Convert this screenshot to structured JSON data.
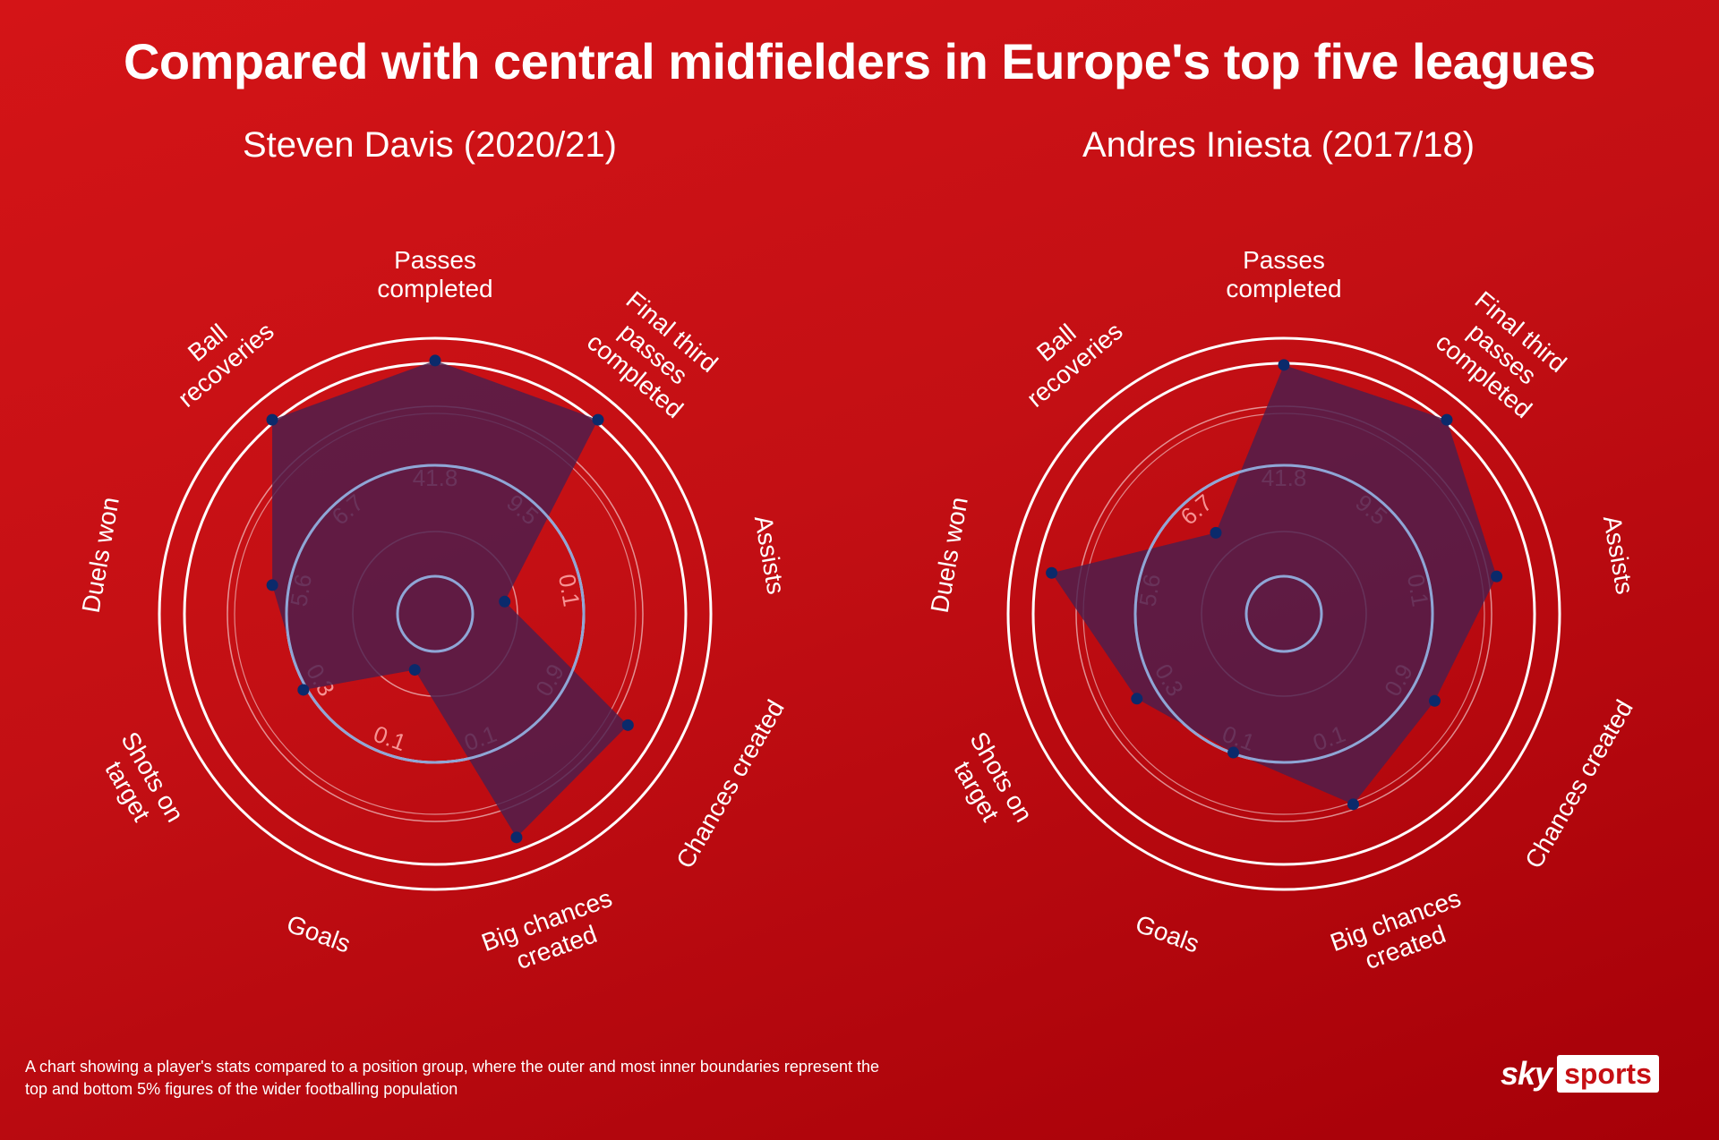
{
  "title": "Compared with central midfielders in Europe's top five leagues",
  "footnote": "A chart showing a player's stats compared to a position group, where the outer and most inner boundaries represent the top and bottom 5% figures of the wider footballing population",
  "logo": {
    "sky": "sky",
    "sports": "sports"
  },
  "colors": {
    "background": "#c8101a",
    "fill": "#4b1f4e",
    "point": "#0b2a6b",
    "ring": "#ffffff",
    "median_ring": "#8fa6d6"
  },
  "chart_data": [
    {
      "type": "radar",
      "title": "Steven Davis (2020/21)",
      "axes": [
        "Passes completed",
        "Final third passes completed",
        "Assists",
        "Chances created",
        "Big chances created",
        "Goals",
        "Shots on target",
        "Duels won",
        "Ball recoveries"
      ],
      "median_labels": [
        "41.8",
        "9.5",
        "0.1",
        "0.9",
        "0.1",
        "0.1",
        "0.3",
        "5.6",
        "6.7"
      ],
      "values": [
        0.98,
        0.98,
        0.15,
        0.84,
        0.91,
        0.1,
        0.52,
        0.58,
        0.98
      ]
    },
    {
      "type": "radar",
      "title": "Andres Iniesta (2017/18)",
      "axes": [
        "Passes completed",
        "Final third passes completed",
        "Assists",
        "Chances created",
        "Big chances created",
        "Goals",
        "Shots on target",
        "Duels won",
        "Ball recoveries"
      ],
      "median_labels": [
        "41.8",
        "9.5",
        "0.1",
        "0.9",
        "0.1",
        "0.1",
        "0.3",
        "5.6",
        "6.7"
      ],
      "values": [
        0.96,
        0.98,
        0.81,
        0.62,
        0.75,
        0.5,
        0.6,
        0.9,
        0.31
      ]
    }
  ]
}
